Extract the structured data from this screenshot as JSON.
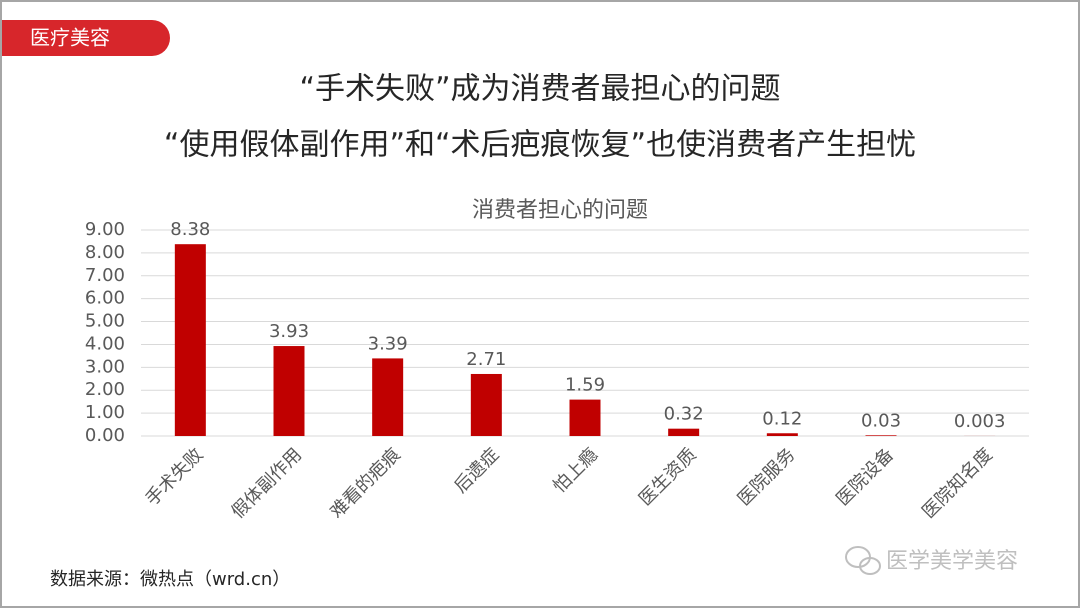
{
  "tag": "医疗美容",
  "headline": [
    "“手术失败”成为消费者最担心的问题",
    "“使用假体副作用”和“术后疤痕恢复”也使消费者产生担忧"
  ],
  "source": "数据来源：微热点（wrd.cn）",
  "watermark": "医学美学美容",
  "chart_data": {
    "type": "bar",
    "title": "消费者担心的问题",
    "categories": [
      "手术失败",
      "假体副作用",
      "难看的疤痕",
      "后遗症",
      "怕上瘾",
      "医生资质",
      "医院服务",
      "医院设备",
      "医院知名度"
    ],
    "values": [
      8.38,
      3.93,
      3.39,
      2.71,
      1.59,
      0.32,
      0.12,
      0.03,
      0.003
    ],
    "color": "#c00000",
    "ylim": [
      0,
      9
    ],
    "yticks": [
      {
        "value": 0,
        "label": "0.00"
      },
      {
        "value": 1,
        "label": "1.00"
      },
      {
        "value": 2,
        "label": "2.00"
      },
      {
        "value": 3,
        "label": "3.00"
      },
      {
        "value": 4,
        "label": "4.00"
      },
      {
        "value": 5,
        "label": "5.00"
      },
      {
        "value": 6,
        "label": "6.00"
      },
      {
        "value": 7,
        "label": "7.00"
      },
      {
        "value": 8,
        "label": "8.00"
      },
      {
        "value": 9,
        "label": "9.00"
      }
    ],
    "grid": true
  }
}
